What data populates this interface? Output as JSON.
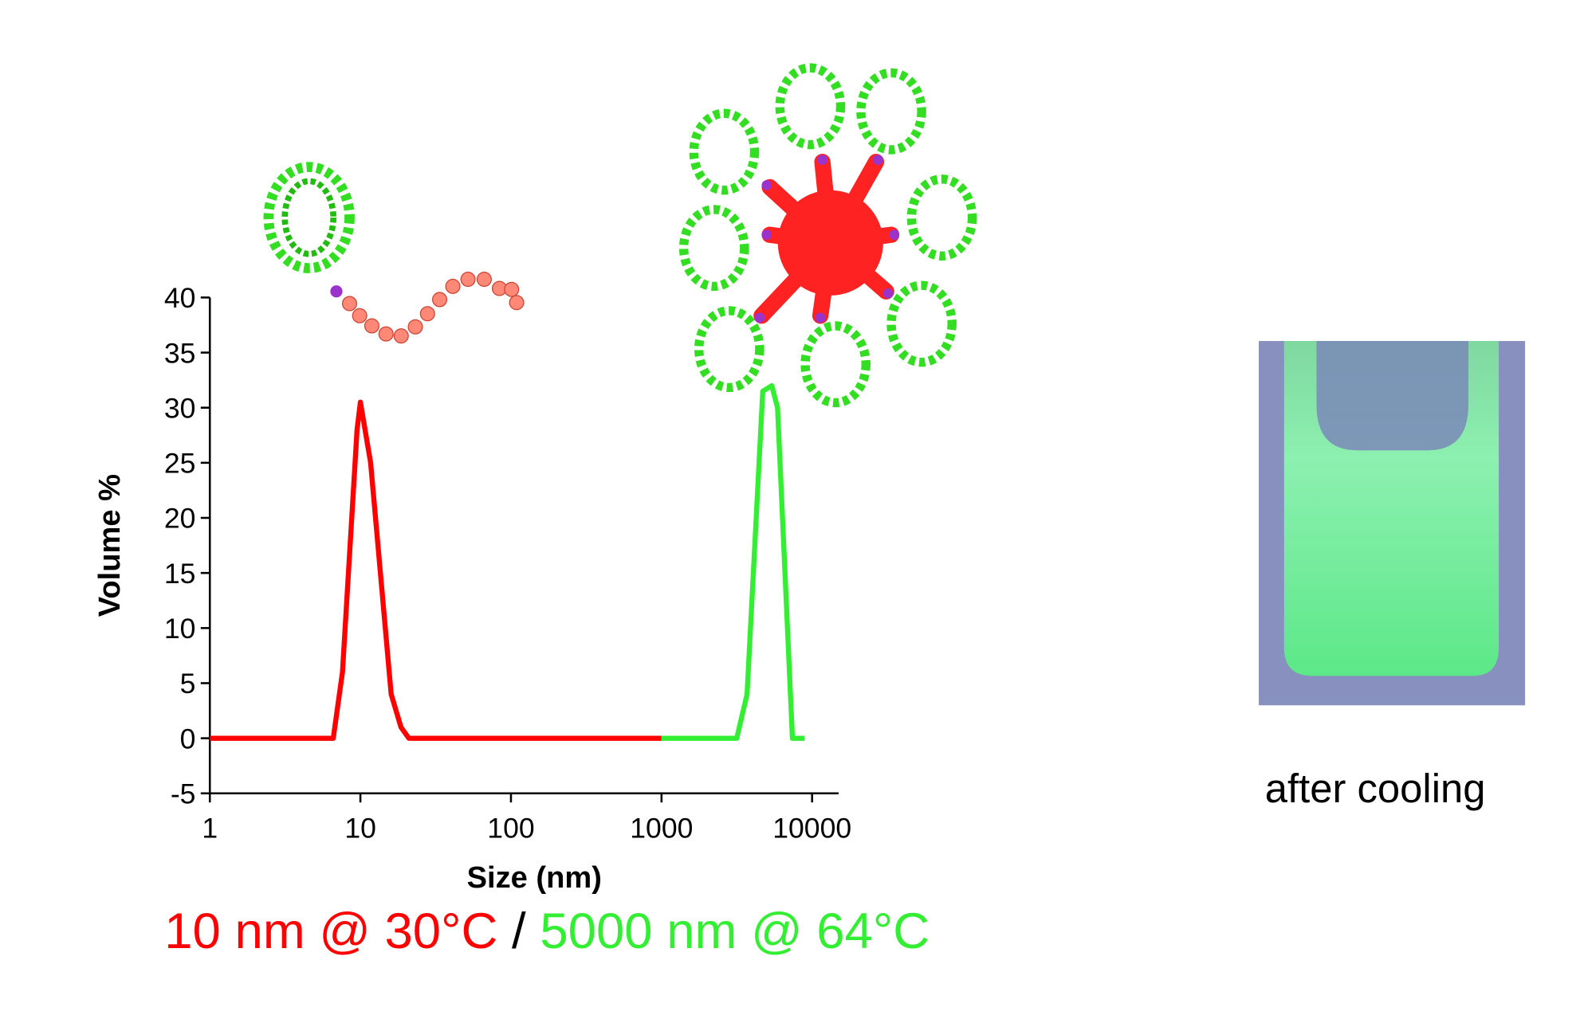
{
  "chart_data": {
    "type": "line",
    "xlabel": "Size (nm)",
    "ylabel": "Volume %",
    "xscale": "log",
    "xlim": [
      1,
      15000
    ],
    "ylim": [
      -5,
      40
    ],
    "xticks": [
      1,
      10,
      100,
      1000,
      10000
    ],
    "yticks": [
      -5,
      0,
      5,
      10,
      15,
      20,
      25,
      30,
      35,
      40
    ],
    "series": [
      {
        "color": "#ff0000",
        "x": [
          1,
          6.6,
          7.6,
          9.5,
          10,
          11.7,
          16,
          18.6,
          21,
          1000
        ],
        "values": [
          0,
          0,
          6,
          28,
          30.5,
          25,
          4,
          1,
          0,
          0
        ]
      },
      {
        "color": "#33ee33",
        "x": [
          1000,
          3160,
          3700,
          4700,
          5400,
          5900,
          7400,
          8900
        ],
        "values": [
          0,
          0,
          4,
          31.5,
          32,
          30,
          0,
          0
        ]
      }
    ],
    "annotations": [
      {
        "text": "10 nm @ 30°C",
        "color": "#ff0000"
      },
      {
        "text": "/",
        "color": "#000000"
      },
      {
        "text": "5000 nm @ 64°C",
        "color": "#33ee33"
      }
    ],
    "caption": "after cooling"
  }
}
